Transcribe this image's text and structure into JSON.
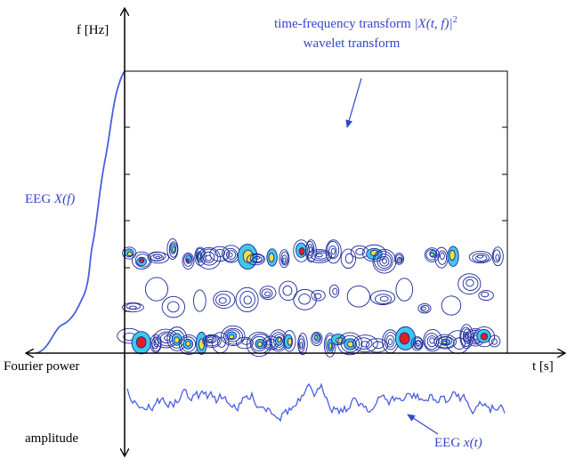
{
  "axes": {
    "y_label": "f [Hz]",
    "x_label": "t [s]",
    "left_label": "Fourier power",
    "bottom_label": "amplitude"
  },
  "annotations": {
    "transform_text": "time-frequency transform",
    "transform_formula": "|X(t, f)|",
    "transform_exponent": "2",
    "wavelet": "wavelet transform",
    "spectrum_prefix": "EEG",
    "spectrum_symbol": "X(f)",
    "signal_prefix": "EEG",
    "signal_symbol": "x(t)"
  }
}
